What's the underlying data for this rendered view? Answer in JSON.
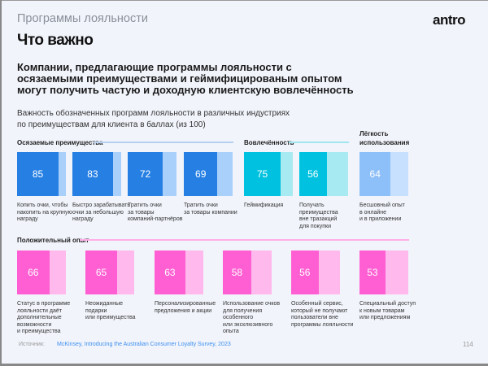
{
  "header": {
    "section": "Программы лояльности",
    "title": "Что важно",
    "logo": "antro"
  },
  "lead": "Компании, предлагающие программы лояльности с осязаемыми преимуществами и геймифицированым опытом могут получить частую и доходную клиентскую вовлечённость",
  "subtitle_lines": [
    "Важность обозначенных программ лояльности в различных индустриях",
    "по преимуществам для клиента в баллах (из 100)"
  ],
  "chart_data": {
    "type": "bar",
    "title": "Важность обозначенных программ лояльности в различных индустриях по преимуществам для клиента в баллах (из 100)",
    "ylim": [
      0,
      100
    ],
    "groups": [
      {
        "name": "Осязаемые преимущества",
        "color": "#2680e4",
        "light": "#a9d0fb",
        "line": "#b6d0f2",
        "categories": [
          "Копить очки, чтобы накопить на крупную награду",
          "Быстро зарабатывать очки за небольшую награду",
          "Тратить очки за товары компаний-партнёров",
          "Тратить очки за товары компании"
        ],
        "values": [
          85,
          83,
          72,
          69
        ]
      },
      {
        "name": "Вовлечённость",
        "color": "#00c2e0",
        "light": "#a8eaf1",
        "line": "#9fe6ee",
        "categories": [
          "Геймификация",
          "Получать преимущества вне тразакций для покупки"
        ],
        "values": [
          75,
          56
        ]
      },
      {
        "name": "Лёгкость использования",
        "color": "#8dbff8",
        "light": "#c6e0fd",
        "line": "",
        "categories": [
          "Бесшовный опыт в онлайне и в приложении"
        ],
        "values": [
          64
        ]
      },
      {
        "name": "Положительный опыт",
        "color": "#ff5fd2",
        "light": "#ffb9ed",
        "line": "#ffaee8",
        "categories": [
          "Статус в программе лояльности даёт дополнительные возможности и преимущества",
          "Неожиданные подарки или преимущества",
          "Персонализированные предложения и акции",
          "Использование очков для получения особенного или эксклюзивного опыта",
          "Особенный сервис, который не получают пользователи вне программы лояльности",
          "Специальный доступ к новым товарам или предложениям"
        ],
        "values": [
          66,
          65,
          63,
          58,
          56,
          53
        ]
      }
    ]
  },
  "label_lines": [
    [
      "Копить очки, чтобы",
      "накопить на крупную",
      "награду"
    ],
    [
      "Быстро зарабатывать",
      "очки за небольшую",
      "награду"
    ],
    [
      "Тратить очки",
      "за товары",
      "компаний-партнёров"
    ],
    [
      "Тратить очки",
      "за товары компании"
    ],
    [
      "Геймификация"
    ],
    [
      "Получать",
      "преимущества",
      "вне тразакций",
      "для покупки"
    ],
    [
      "Бесшовный опыт",
      "в онлайне",
      "и в приложении"
    ],
    [
      "Статус в программе",
      "лояльности даёт",
      "дополнительные",
      "возможности",
      "и преимущества"
    ],
    [
      "Неожиданные",
      "подарки",
      "или преимущества"
    ],
    [
      "Персонализированные",
      "предложения и акции"
    ],
    [
      "Использование очков",
      "для получения особенного",
      "или эксклюзивного опыта"
    ],
    [
      "Особенный сервис,",
      "который не получают",
      "пользователи вне",
      "программы лояльности"
    ],
    [
      "Специальный доступ",
      "к новым товарам",
      "или предложениям"
    ]
  ],
  "section_titles": [
    "Осязаемые преимущества",
    "Вовлечённость",
    "Лёгкость\nиспользования",
    "Положительный опыт"
  ],
  "footer": {
    "source_label": "Источник:",
    "source": "McKinsey, Introducing the Australian Consumer Loyalty Survey, 2023",
    "page": "114"
  }
}
